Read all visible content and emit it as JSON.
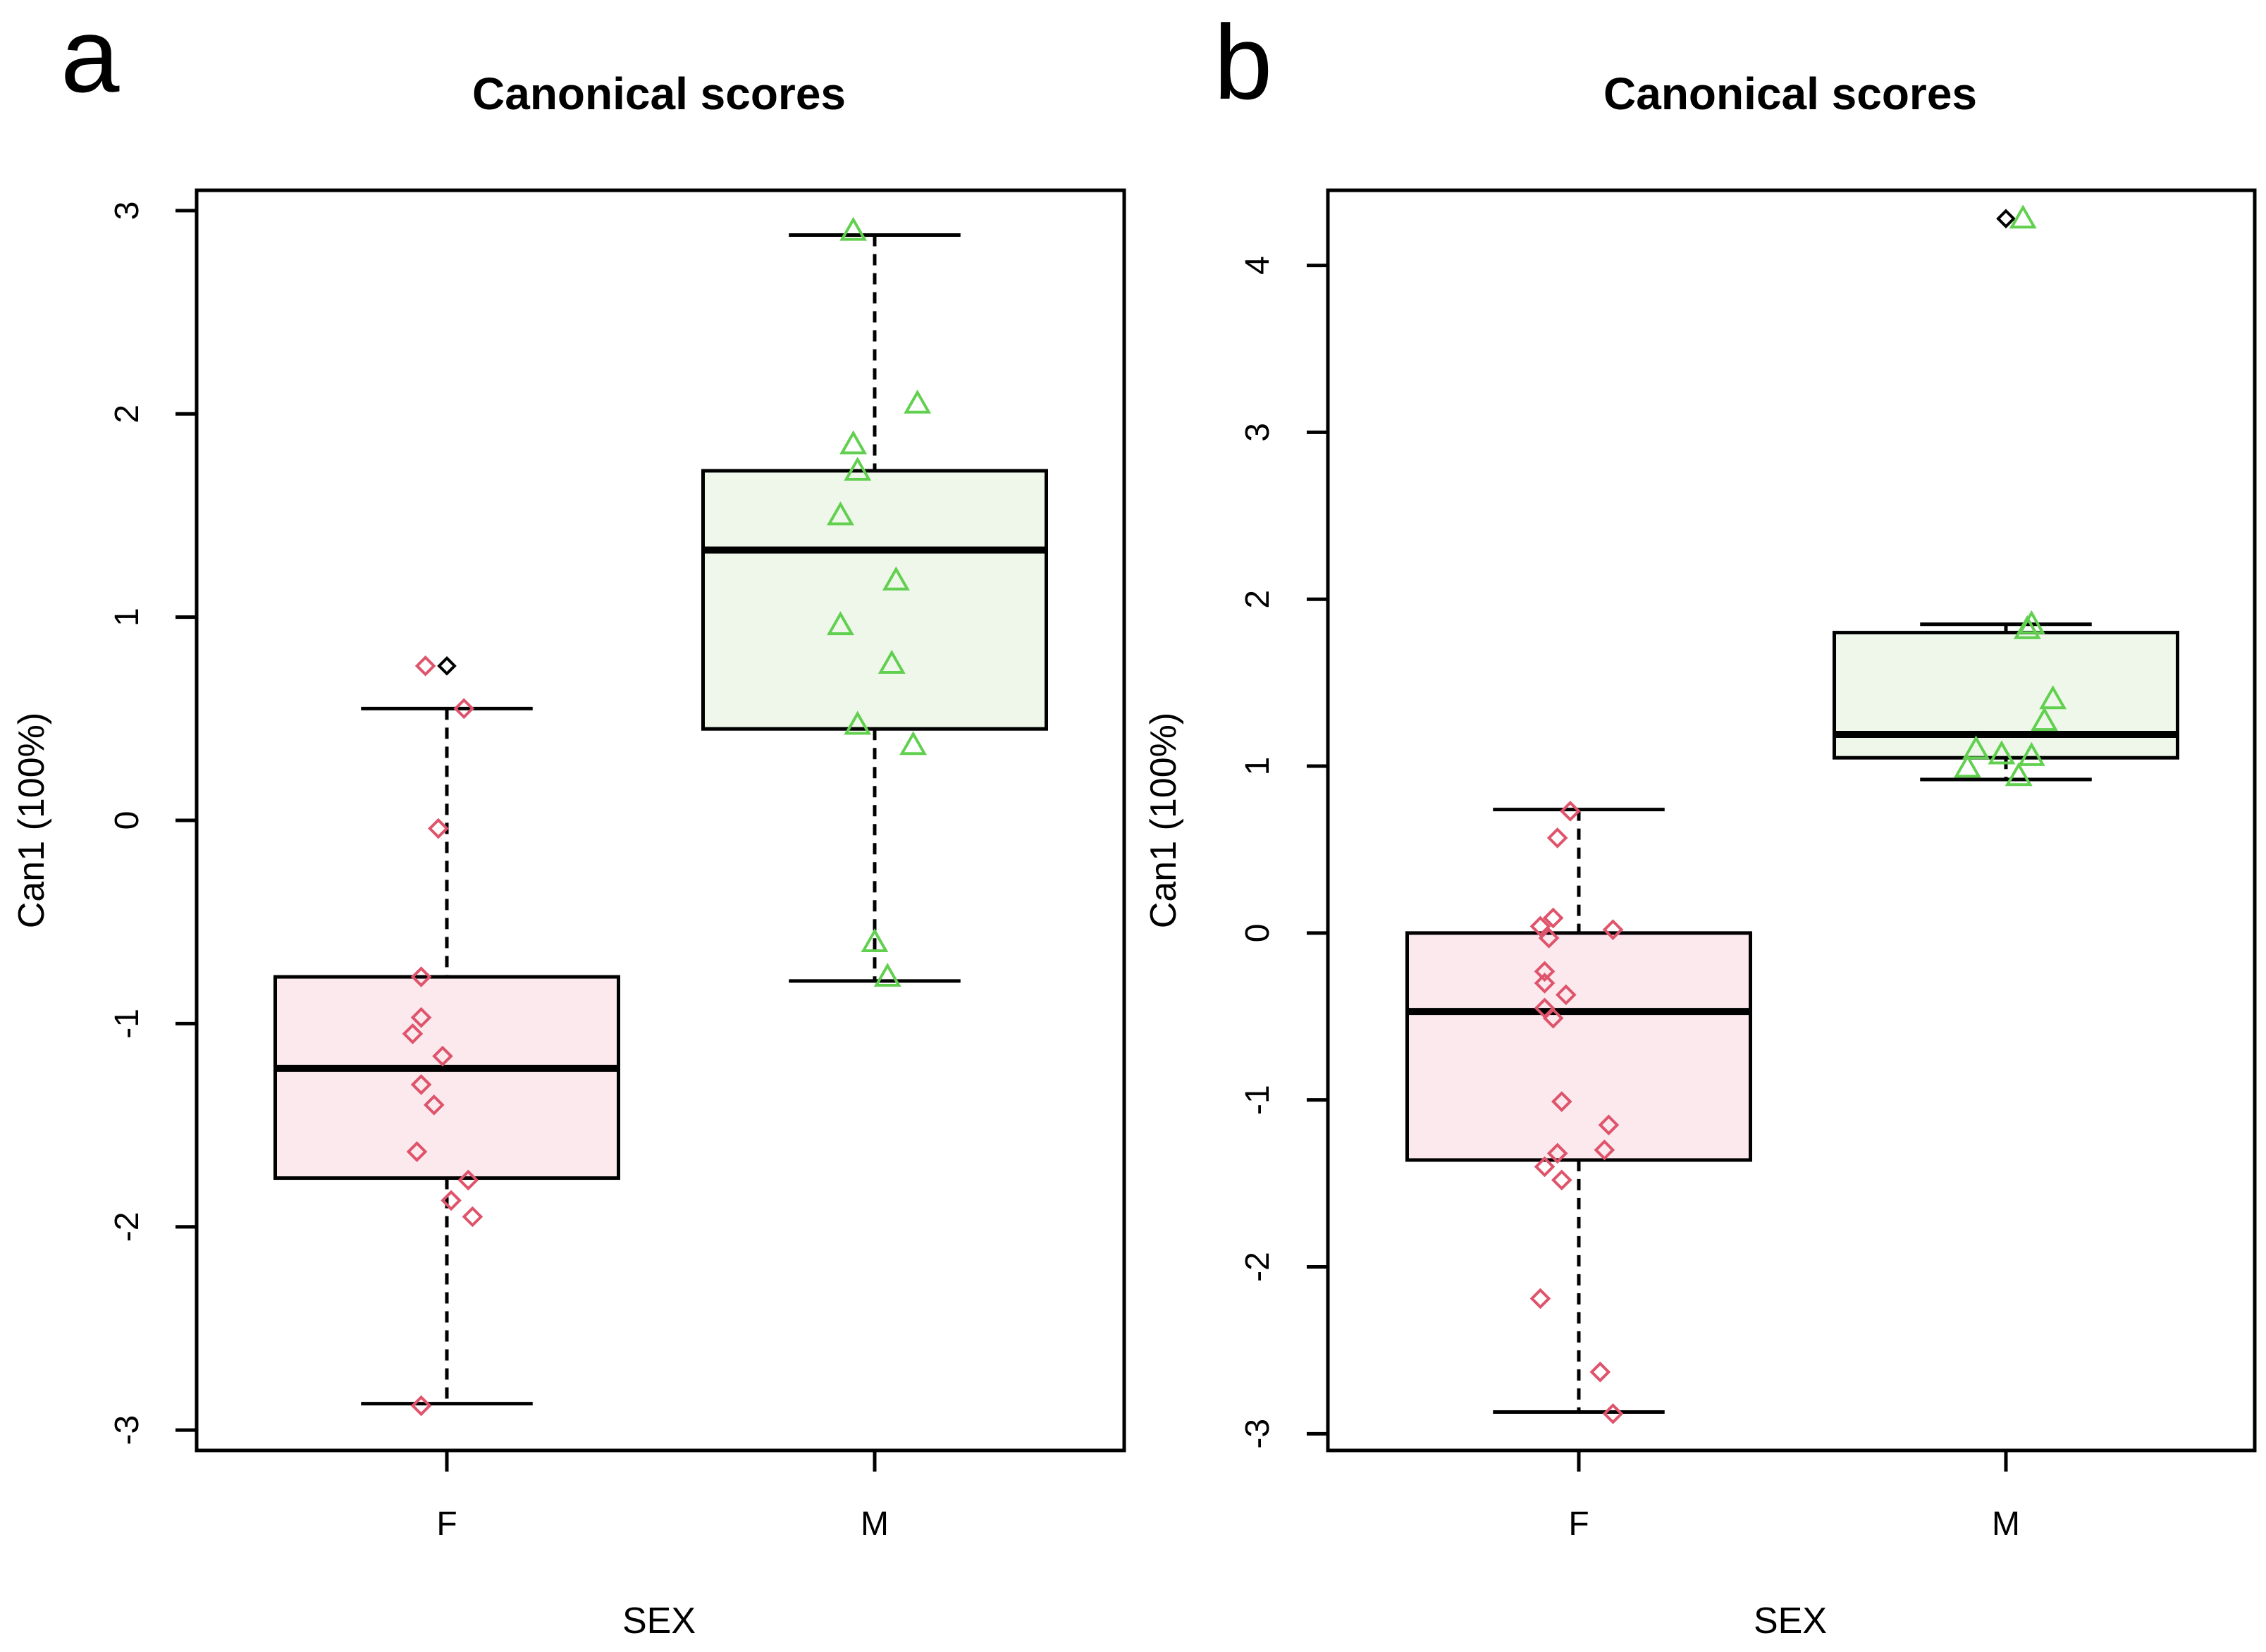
{
  "figure": {
    "panels": [
      {
        "letter": "a",
        "title": "Canonical scores"
      },
      {
        "letter": "b",
        "title": "Canonical scores"
      }
    ]
  },
  "chart_data": [
    {
      "type": "box",
      "title": "Canonical scores",
      "xlabel": "SEX",
      "ylabel": "Can1 (100%)",
      "categories": [
        "F",
        "M"
      ],
      "ylim": [
        -3.1,
        3.1
      ],
      "yticks": [
        -3,
        -2,
        -1,
        0,
        1,
        2,
        3
      ],
      "colors": {
        "F": "#df536b",
        "M": "#61d04f",
        "F_fill": "#fbe9ee",
        "M_fill": "#eef7ea"
      },
      "boxes": [
        {
          "name": "F",
          "lower_whisker": -2.87,
          "q1": -1.76,
          "median": -1.22,
          "q3": -0.77,
          "upper_whisker": 0.55,
          "outliers": [
            0.76
          ]
        },
        {
          "name": "M",
          "lower_whisker": -0.79,
          "q1": 0.45,
          "median": 1.33,
          "q3": 1.72,
          "upper_whisker": 2.88,
          "outliers": []
        }
      ],
      "points": {
        "F": [
          {
            "x": 0.95,
            "y": 0.76
          },
          {
            "x": 1.04,
            "y": 0.55
          },
          {
            "x": 0.98,
            "y": -0.04
          },
          {
            "x": 0.94,
            "y": -0.77
          },
          {
            "x": 0.94,
            "y": -0.97
          },
          {
            "x": 0.92,
            "y": -1.05
          },
          {
            "x": 0.99,
            "y": -1.16
          },
          {
            "x": 0.94,
            "y": -1.3
          },
          {
            "x": 0.97,
            "y": -1.4
          },
          {
            "x": 0.93,
            "y": -1.63
          },
          {
            "x": 1.05,
            "y": -1.77
          },
          {
            "x": 1.01,
            "y": -1.87
          },
          {
            "x": 1.06,
            "y": -1.95
          },
          {
            "x": 0.94,
            "y": -2.88
          }
        ],
        "M": [
          {
            "x": 0.95,
            "y": 2.9
          },
          {
            "x": 1.1,
            "y": 2.05
          },
          {
            "x": 0.95,
            "y": 1.85
          },
          {
            "x": 0.96,
            "y": 1.72
          },
          {
            "x": 0.92,
            "y": 1.5
          },
          {
            "x": 1.05,
            "y": 1.18
          },
          {
            "x": 0.92,
            "y": 0.96
          },
          {
            "x": 1.04,
            "y": 0.77
          },
          {
            "x": 0.96,
            "y": 0.47
          },
          {
            "x": 1.09,
            "y": 0.37
          },
          {
            "x": 1.0,
            "y": -0.6
          },
          {
            "x": 1.03,
            "y": -0.77
          }
        ]
      }
    },
    {
      "type": "box",
      "title": "Canonical scores",
      "xlabel": "SEX",
      "ylabel": "Can1 (100%)",
      "categories": [
        "F",
        "M"
      ],
      "ylim": [
        -3.1,
        4.45
      ],
      "yticks": [
        -3,
        -2,
        -1,
        0,
        1,
        2,
        3,
        4
      ],
      "colors": {
        "F": "#df536b",
        "M": "#61d04f",
        "F_fill": "#fbe9ee",
        "M_fill": "#eef7ea"
      },
      "boxes": [
        {
          "name": "F",
          "lower_whisker": -2.87,
          "q1": -1.36,
          "median": -0.47,
          "q3": 0.0,
          "upper_whisker": 0.74,
          "outliers": []
        },
        {
          "name": "M",
          "lower_whisker": 0.92,
          "q1": 1.05,
          "median": 1.19,
          "q3": 1.8,
          "upper_whisker": 1.85,
          "outliers": [
            4.28
          ]
        }
      ],
      "points": {
        "F": [
          {
            "x": 0.98,
            "y": 0.73
          },
          {
            "x": 0.95,
            "y": 0.57
          },
          {
            "x": 0.94,
            "y": 0.09
          },
          {
            "x": 0.91,
            "y": 0.04
          },
          {
            "x": 1.08,
            "y": 0.02
          },
          {
            "x": 0.93,
            "y": -0.03
          },
          {
            "x": 0.92,
            "y": -0.23
          },
          {
            "x": 0.92,
            "y": -0.3
          },
          {
            "x": 0.97,
            "y": -0.37
          },
          {
            "x": 0.92,
            "y": -0.45
          },
          {
            "x": 0.94,
            "y": -0.51
          },
          {
            "x": 0.96,
            "y": -1.01
          },
          {
            "x": 1.07,
            "y": -1.15
          },
          {
            "x": 0.95,
            "y": -1.32
          },
          {
            "x": 1.06,
            "y": -1.3
          },
          {
            "x": 0.92,
            "y": -1.4
          },
          {
            "x": 0.96,
            "y": -1.48
          },
          {
            "x": 0.91,
            "y": -2.19
          },
          {
            "x": 1.05,
            "y": -2.63
          },
          {
            "x": 1.08,
            "y": -2.88
          }
        ],
        "M": [
          {
            "x": 1.04,
            "y": 4.28
          },
          {
            "x": 1.06,
            "y": 1.85
          },
          {
            "x": 1.05,
            "y": 1.82
          },
          {
            "x": 1.11,
            "y": 1.4
          },
          {
            "x": 1.09,
            "y": 1.27
          },
          {
            "x": 0.93,
            "y": 1.1
          },
          {
            "x": 0.99,
            "y": 1.07
          },
          {
            "x": 1.06,
            "y": 1.06
          },
          {
            "x": 0.91,
            "y": 0.99
          },
          {
            "x": 1.03,
            "y": 0.94
          }
        ]
      }
    }
  ]
}
